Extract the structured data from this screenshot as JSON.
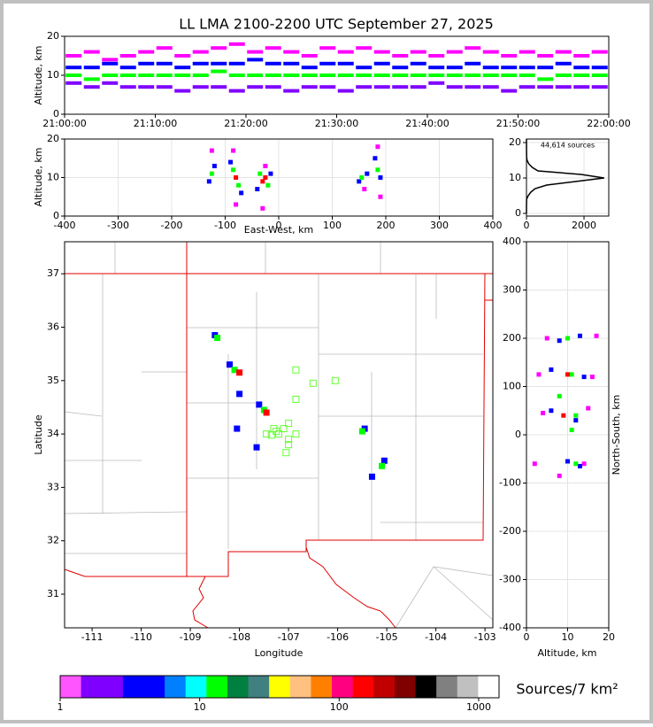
{
  "chart_data": [
    {
      "type": "scatter",
      "title": "LL LMA 2100-2200 UTC September 27, 2025",
      "y_label": "Altitude, km",
      "xlim": [
        0,
        60
      ],
      "xticks": [
        {
          "value": 0,
          "label": "21:00:00"
        },
        {
          "value": 10,
          "label": "21:10:00"
        },
        {
          "value": 20,
          "label": "21:20:00"
        },
        {
          "value": 30,
          "label": "21:30:00"
        },
        {
          "value": 40,
          "label": "21:40:00"
        },
        {
          "value": 50,
          "label": "21:50:00"
        },
        {
          "value": 60,
          "label": "22:00:00"
        }
      ],
      "ylim": [
        0,
        20
      ],
      "yticks": [
        0,
        10,
        20
      ],
      "grid": false,
      "series": [
        {
          "color": "#ff00ff",
          "x": [
            1,
            3,
            5,
            7,
            9,
            11,
            13,
            15,
            17,
            19,
            21,
            23,
            25,
            27,
            29,
            31,
            33,
            35,
            37,
            39,
            41,
            43,
            45,
            47,
            49,
            51,
            53,
            55,
            57,
            59
          ],
          "values": [
            15,
            16,
            14,
            15,
            16,
            17,
            15,
            16,
            17,
            18,
            16,
            17,
            16,
            15,
            17,
            16,
            17,
            16,
            15,
            16,
            15,
            16,
            17,
            16,
            15,
            16,
            15,
            16,
            15,
            16
          ]
        },
        {
          "color": "#0000ff",
          "x": [
            1,
            3,
            5,
            7,
            9,
            11,
            13,
            15,
            17,
            19,
            21,
            23,
            25,
            27,
            29,
            31,
            33,
            35,
            37,
            39,
            41,
            43,
            45,
            47,
            49,
            51,
            53,
            55,
            57,
            59
          ],
          "values": [
            12,
            12,
            13,
            12,
            13,
            13,
            12,
            13,
            13,
            13,
            14,
            13,
            13,
            12,
            13,
            13,
            12,
            13,
            12,
            13,
            12,
            12,
            13,
            12,
            12,
            12,
            12,
            13,
            12,
            12
          ]
        },
        {
          "color": "#00ff00",
          "x": [
            1,
            3,
            5,
            7,
            9,
            11,
            13,
            15,
            17,
            19,
            21,
            23,
            25,
            27,
            29,
            31,
            33,
            35,
            37,
            39,
            41,
            43,
            45,
            47,
            49,
            51,
            53,
            55,
            57,
            59
          ],
          "values": [
            10,
            9,
            10,
            10,
            10,
            10,
            10,
            10,
            11,
            10,
            10,
            10,
            10,
            10,
            10,
            10,
            10,
            10,
            10,
            10,
            10,
            10,
            10,
            10,
            10,
            10,
            9,
            10,
            10,
            10
          ]
        },
        {
          "color": "#8000ff",
          "x": [
            1,
            3,
            5,
            7,
            9,
            11,
            13,
            15,
            17,
            19,
            21,
            23,
            25,
            27,
            29,
            31,
            33,
            35,
            37,
            39,
            41,
            43,
            45,
            47,
            49,
            51,
            53,
            55,
            57,
            59
          ],
          "values": [
            8,
            7,
            8,
            7,
            7,
            7,
            6,
            7,
            7,
            6,
            7,
            7,
            6,
            7,
            7,
            6,
            7,
            7,
            7,
            7,
            8,
            7,
            7,
            7,
            6,
            7,
            7,
            7,
            7,
            7
          ]
        }
      ]
    },
    {
      "type": "scatter",
      "x_label": "East-West, km",
      "y_label": "Altitude, km",
      "xlim": [
        -400,
        400
      ],
      "xticks": [
        -400,
        -300,
        -200,
        -100,
        0,
        100,
        200,
        300,
        400
      ],
      "ylim": [
        0,
        20
      ],
      "yticks": [
        0,
        10,
        20
      ],
      "grid": true,
      "series": [
        {
          "color": "#ff00ff",
          "x": [
            -125,
            -85,
            -80,
            -30,
            -25,
            185,
            190,
            160
          ],
          "values": [
            17,
            17,
            3,
            2,
            13,
            18,
            5,
            7
          ]
        },
        {
          "color": "#0000ff",
          "x": [
            -130,
            -120,
            -90,
            -70,
            -40,
            -15,
            150,
            165,
            180,
            190
          ],
          "values": [
            9,
            13,
            14,
            6,
            7,
            11,
            9,
            11,
            15,
            10
          ]
        },
        {
          "color": "#00ff00",
          "x": [
            -125,
            -85,
            -75,
            -35,
            -20,
            155,
            185
          ],
          "values": [
            11,
            12,
            8,
            11,
            8,
            10,
            12
          ]
        },
        {
          "color": "#ff0000",
          "x": [
            -80,
            -30,
            -25
          ],
          "values": [
            10,
            9,
            10
          ]
        }
      ]
    },
    {
      "type": "line",
      "orientation": "horizontal",
      "annotation": "44,614 sources",
      "xlim": [
        0,
        2860
      ],
      "xticks": [
        0,
        2000
      ],
      "ylim": [
        -0.75,
        21
      ],
      "yticks": [
        0,
        10,
        20
      ],
      "grid": true,
      "color": "#000000",
      "altitudes": [
        0,
        2,
        4,
        5,
        6,
        7,
        8,
        9,
        10,
        11,
        12,
        13,
        14,
        15,
        16,
        18,
        20,
        21
      ],
      "values": [
        0,
        0,
        5,
        60,
        150,
        300,
        700,
        1700,
        2700,
        1900,
        400,
        200,
        80,
        20,
        5,
        2,
        0,
        0
      ]
    },
    {
      "type": "scatter",
      "x_label": "Longitude",
      "y_label": "Latitude",
      "xlim": [
        -111.56,
        -102.84
      ],
      "xticks": [
        -111,
        -110,
        -109,
        -108,
        -107,
        -106,
        -105,
        -104,
        -103
      ],
      "ylim": [
        30.37,
        37.6
      ],
      "yticks": [
        31,
        32,
        33,
        34,
        35,
        36,
        37
      ],
      "grid": false,
      "series": [
        {
          "color": "#0000ff",
          "x": [
            -108.5,
            -108.2,
            -108.0,
            -107.6,
            -108.05,
            -105.45,
            -105.05,
            -105.3,
            -107.65
          ],
          "values": [
            35.85,
            35.3,
            34.75,
            34.55,
            34.1,
            34.1,
            33.5,
            33.2,
            33.75
          ]
        },
        {
          "color": "#00ff00",
          "x": [
            -108.45,
            -108.1,
            -107.5,
            -105.5,
            -105.1
          ],
          "values": [
            35.8,
            35.2,
            34.45,
            34.05,
            33.4
          ]
        },
        {
          "color": "#ff0000",
          "x": [
            -108.0,
            -107.45
          ],
          "values": [
            35.15,
            34.4
          ]
        },
        {
          "color": "#66ff33",
          "marker": "open-square",
          "x": [
            -106.85,
            -106.5,
            -106.05,
            -106.85,
            -107.0,
            -107.1,
            -107.2,
            -107.35,
            -107.45,
            -107.25,
            -107.0,
            -106.85,
            -107.0,
            -107.05,
            -107.3
          ],
          "values": [
            35.2,
            34.95,
            35.0,
            34.65,
            34.2,
            34.1,
            34.0,
            33.98,
            34.0,
            34.05,
            33.9,
            34.0,
            33.8,
            33.65,
            34.1
          ]
        }
      ]
    },
    {
      "type": "scatter",
      "x_label": "Altitude, km",
      "y_label": "North-South, km",
      "xlim": [
        0,
        20
      ],
      "xticks": [
        0,
        10,
        20
      ],
      "ylim": [
        -400,
        400
      ],
      "yticks": [
        -400,
        -300,
        -200,
        -100,
        0,
        100,
        200,
        300,
        400
      ],
      "grid": true,
      "series": [
        {
          "color": "#ff00ff",
          "x": [
            5,
            17,
            3,
            16,
            4,
            15,
            14,
            2,
            8
          ],
          "values": [
            200,
            205,
            125,
            120,
            45,
            55,
            -60,
            -60,
            -85
          ]
        },
        {
          "color": "#0000ff",
          "x": [
            8,
            13,
            6,
            14,
            6,
            12,
            10,
            13
          ],
          "values": [
            195,
            205,
            135,
            120,
            50,
            30,
            -55,
            -65
          ]
        },
        {
          "color": "#00ff00",
          "x": [
            10,
            11,
            8,
            12,
            11,
            12
          ],
          "values": [
            200,
            125,
            80,
            40,
            10,
            -60
          ]
        },
        {
          "color": "#ff0000",
          "x": [
            10,
            9
          ],
          "values": [
            125,
            40
          ]
        }
      ]
    },
    {
      "type": "colorbar",
      "label": "Sources/7 km²",
      "scale": "log",
      "xlim": [
        1,
        1400
      ],
      "xticks": [
        1,
        10,
        100,
        1000
      ],
      "colors": [
        "#ff55ff",
        "#8000ff",
        "#8000ff",
        "#0000ff",
        "#0000ff",
        "#0080ff",
        "#00ffff",
        "#00ff00",
        "#008040",
        "#408080",
        "#ffff00",
        "#ffc080",
        "#ff8000",
        "#ff0080",
        "#ff0000",
        "#c00000",
        "#800000",
        "#000000",
        "#808080",
        "#c0c0c0",
        "#ffffff"
      ]
    }
  ]
}
